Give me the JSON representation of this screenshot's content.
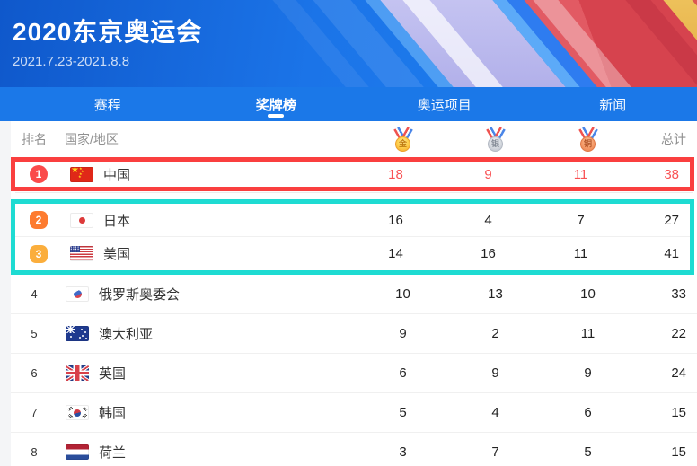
{
  "header": {
    "title": "2020东京奥运会",
    "dates": "2021.7.23-2021.8.8"
  },
  "nav": {
    "active_tab": "奖牌榜",
    "tabs": [
      {
        "label": "赛程"
      },
      {
        "label": "奖牌榜"
      },
      {
        "label": "奥运项目"
      },
      {
        "label": "新闻"
      }
    ]
  },
  "table": {
    "headers": {
      "rank": "排名",
      "country": "国家/地区",
      "total": "总计"
    },
    "medals": [
      {
        "name": "gold",
        "char": "金"
      },
      {
        "name": "silver",
        "char": "银"
      },
      {
        "name": "bronze",
        "char": "铜"
      }
    ],
    "rows": [
      {
        "rank": "1",
        "country": "中国",
        "flag": "cn",
        "gold": "18",
        "silver": "9",
        "bronze": "11",
        "total": "38",
        "highlight": "red",
        "badge": "red"
      },
      {
        "rank": "2",
        "country": "日本",
        "flag": "jp",
        "gold": "16",
        "silver": "4",
        "bronze": "7",
        "total": "27",
        "highlight": "teal",
        "badge": "orange"
      },
      {
        "rank": "3",
        "country": "美国",
        "flag": "us",
        "gold": "14",
        "silver": "16",
        "bronze": "11",
        "total": "41",
        "highlight": "teal",
        "badge": "amber"
      },
      {
        "rank": "4",
        "country": "俄罗斯奥委会",
        "flag": "roc",
        "gold": "10",
        "silver": "13",
        "bronze": "10",
        "total": "33"
      },
      {
        "rank": "5",
        "country": "澳大利亚",
        "flag": "au",
        "gold": "9",
        "silver": "2",
        "bronze": "11",
        "total": "22"
      },
      {
        "rank": "6",
        "country": "英国",
        "flag": "gb",
        "gold": "6",
        "silver": "9",
        "bronze": "9",
        "total": "24"
      },
      {
        "rank": "7",
        "country": "韩国",
        "flag": "kr",
        "gold": "5",
        "silver": "4",
        "bronze": "6",
        "total": "15"
      },
      {
        "rank": "8",
        "country": "荷兰",
        "flag": "nl",
        "gold": "3",
        "silver": "7",
        "bronze": "5",
        "total": "15"
      }
    ]
  },
  "colors": {
    "nav_blue": "#1b78e8",
    "hero_blue_start": "#0f58cb",
    "hero_blue_end": "#1f83f2",
    "highlight_red_border": "#fa3f3f",
    "highlight_teal_border": "#1edbd2",
    "china_number_red": "#f95355",
    "badge_red": "#fa4b4b",
    "badge_orange": "#fd7b2f",
    "badge_amber": "#fbae3c",
    "header_text_gray": "#8f8f8f"
  }
}
